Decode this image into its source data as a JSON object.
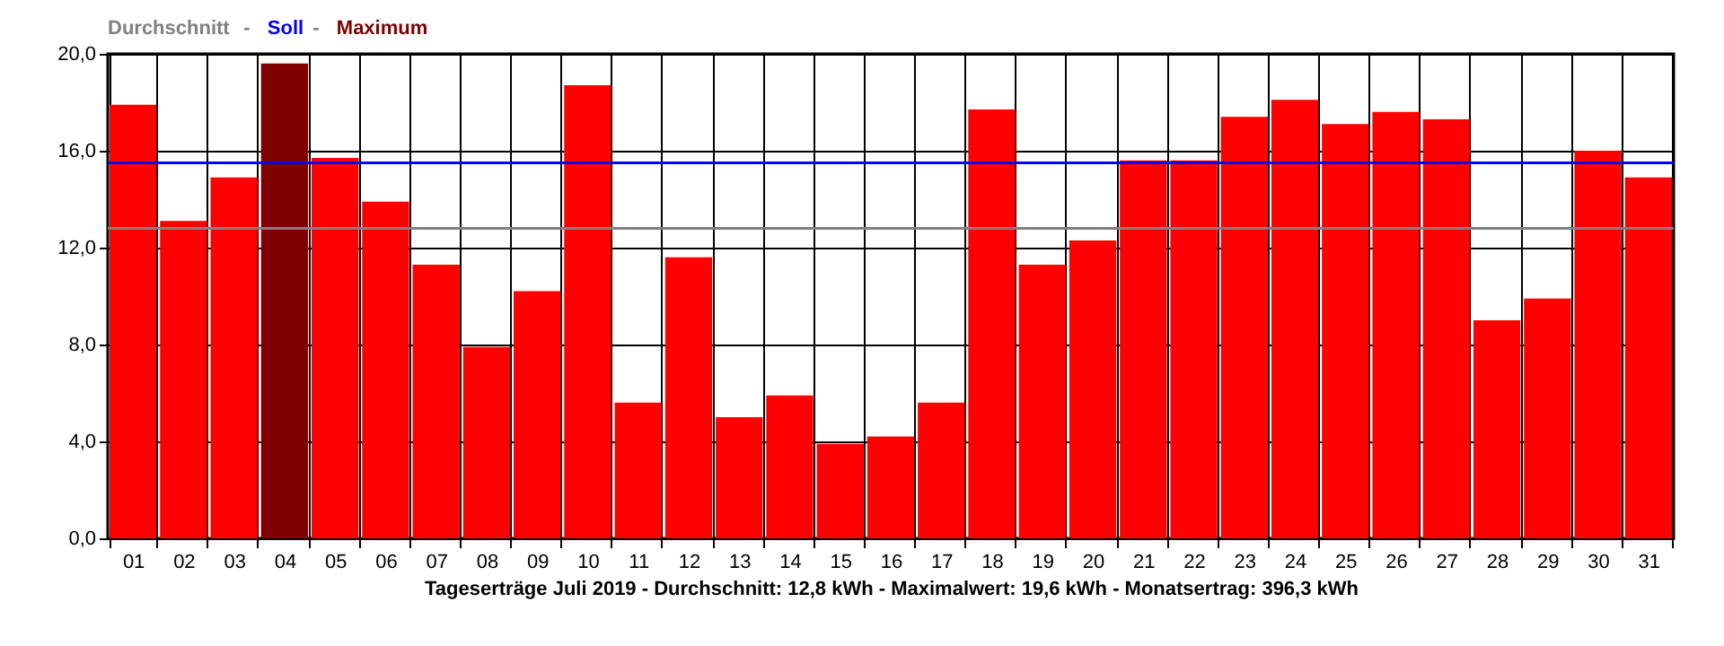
{
  "chart_data": {
    "type": "bar",
    "xlabel": "Tageserträge Juli 2019 - Durchschnitt: 12,8 kWh - Maximalwert: 19,6 kWh - Monatsertrag: 396,3 kWh",
    "categories": [
      "01",
      "02",
      "03",
      "04",
      "05",
      "06",
      "07",
      "08",
      "09",
      "10",
      "11",
      "12",
      "13",
      "14",
      "15",
      "16",
      "17",
      "18",
      "19",
      "20",
      "21",
      "22",
      "23",
      "24",
      "25",
      "26",
      "27",
      "28",
      "29",
      "30",
      "31"
    ],
    "values": [
      17.9,
      13.1,
      14.9,
      19.6,
      15.7,
      13.9,
      11.3,
      7.9,
      10.2,
      18.7,
      5.6,
      11.6,
      5.0,
      5.9,
      3.9,
      4.2,
      5.6,
      17.7,
      11.3,
      12.3,
      15.6,
      15.6,
      17.4,
      18.1,
      17.1,
      17.6,
      17.3,
      9.0,
      9.9,
      16.0,
      14.9
    ],
    "colors": [
      "#ff0000",
      "#ff0000",
      "#ff0000",
      "#800000",
      "#ff0000",
      "#ff0000",
      "#ff0000",
      "#ff0000",
      "#ff0000",
      "#ff0000",
      "#ff0000",
      "#ff0000",
      "#ff0000",
      "#ff0000",
      "#ff0000",
      "#ff0000",
      "#ff0000",
      "#ff0000",
      "#ff0000",
      "#ff0000",
      "#ff0000",
      "#ff0000",
      "#ff0000",
      "#ff0000",
      "#ff0000",
      "#ff0000",
      "#ff0000",
      "#ff0000",
      "#ff0000",
      "#ff0000",
      "#ff0000"
    ],
    "ylim": [
      0,
      20
    ],
    "yticks": [
      {
        "value": 0,
        "label": "0,0"
      },
      {
        "value": 4,
        "label": "4,0"
      },
      {
        "value": 8,
        "label": "8,0"
      },
      {
        "value": 12,
        "label": "12,0"
      },
      {
        "value": 16,
        "label": "16,0"
      },
      {
        "value": 20,
        "label": "20,0"
      }
    ],
    "title": "Durchschnitt - Soll - Maximum",
    "ref_lines": [
      {
        "axis": "y",
        "value": 12.8,
        "color": "#808080"
      },
      {
        "axis": "y",
        "value": 15.5,
        "color": "#0000ff"
      }
    ],
    "grid": true
  }
}
